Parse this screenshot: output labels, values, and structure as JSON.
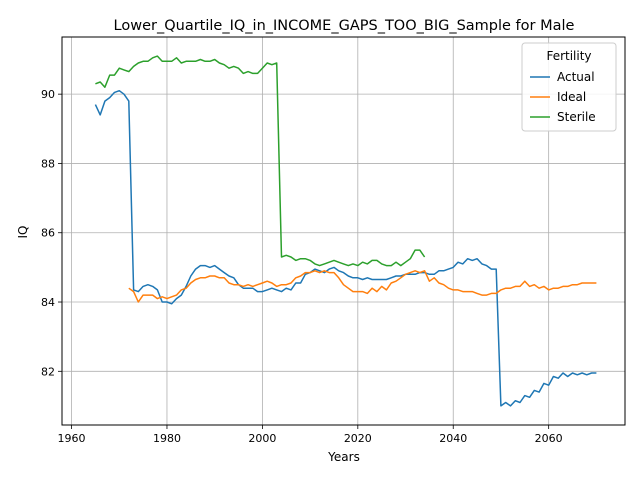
{
  "chart_data": {
    "type": "line",
    "title": "Lower_Quartile_IQ_in_INCOME_GAPS_TOO_BIG_Sample for Male",
    "xlabel": "Years",
    "ylabel": "IQ",
    "xlim": [
      1958,
      2076
    ],
    "ylim": [
      80.45,
      91.65
    ],
    "xticks": [
      1960,
      1980,
      2000,
      2020,
      2040,
      2060
    ],
    "yticks": [
      82,
      84,
      86,
      88,
      90
    ],
    "grid": true,
    "legend": {
      "title": "Fertility",
      "position": "top-right",
      "entries": [
        "Actual",
        "Ideal",
        "Sterile"
      ]
    },
    "series": [
      {
        "name": "Actual",
        "color": "#1f77b4",
        "x": [
          1965,
          1966,
          1967,
          1968,
          1969,
          1970,
          1971,
          1972,
          1973,
          1974,
          1975,
          1976,
          1977,
          1978,
          1979,
          1980,
          1981,
          1982,
          1983,
          1984,
          1985,
          1986,
          1987,
          1988,
          1989,
          1990,
          1991,
          1992,
          1993,
          1994,
          1995,
          1996,
          1997,
          1998,
          1999,
          2000,
          2001,
          2002,
          2003,
          2004,
          2005,
          2006,
          2007,
          2008,
          2009,
          2010,
          2011,
          2012,
          2013,
          2014,
          2015,
          2016,
          2017,
          2018,
          2019,
          2020,
          2021,
          2022,
          2023,
          2024,
          2025,
          2026,
          2027,
          2028,
          2029,
          2030,
          2031,
          2032,
          2033,
          2034,
          2035,
          2036,
          2037,
          2038,
          2039,
          2040,
          2041,
          2042,
          2043,
          2044,
          2045,
          2046,
          2047,
          2048,
          2049,
          2050,
          2051,
          2052,
          2053,
          2054,
          2055,
          2056,
          2057,
          2058,
          2059,
          2060,
          2061,
          2062,
          2063,
          2064,
          2065,
          2066,
          2067,
          2068,
          2069,
          2070
        ],
        "y": [
          89.7,
          89.4,
          89.8,
          89.9,
          90.05,
          90.1,
          90.0,
          89.8,
          84.35,
          84.3,
          84.45,
          84.5,
          84.45,
          84.35,
          84.0,
          84.0,
          83.95,
          84.1,
          84.2,
          84.45,
          84.75,
          84.95,
          85.05,
          85.05,
          85.0,
          85.05,
          84.95,
          84.85,
          84.75,
          84.7,
          84.5,
          84.4,
          84.4,
          84.4,
          84.3,
          84.3,
          84.35,
          84.4,
          84.35,
          84.3,
          84.4,
          84.35,
          84.55,
          84.55,
          84.8,
          84.85,
          84.95,
          84.9,
          84.85,
          84.95,
          85.0,
          84.9,
          84.85,
          84.75,
          84.7,
          84.7,
          84.65,
          84.7,
          84.65,
          84.65,
          84.65,
          84.65,
          84.7,
          84.75,
          84.75,
          84.8,
          84.8,
          84.8,
          84.85,
          84.85,
          84.8,
          84.8,
          84.9,
          84.9,
          84.95,
          85.0,
          85.15,
          85.1,
          85.25,
          85.2,
          85.25,
          85.1,
          85.05,
          84.95,
          84.95,
          81.0,
          81.1,
          81.0,
          81.15,
          81.1,
          81.3,
          81.25,
          81.45,
          81.4,
          81.65,
          81.6,
          81.85,
          81.8,
          81.95,
          81.85,
          81.95,
          81.9,
          81.95,
          81.9,
          81.95,
          81.95
        ]
      },
      {
        "name": "Ideal",
        "color": "#ff7f0e",
        "x": [
          1972,
          1973,
          1974,
          1975,
          1976,
          1977,
          1978,
          1979,
          1980,
          1981,
          1982,
          1983,
          1984,
          1985,
          1986,
          1987,
          1988,
          1989,
          1990,
          1991,
          1992,
          1993,
          1994,
          1995,
          1996,
          1997,
          1998,
          1999,
          2000,
          2001,
          2002,
          2003,
          2004,
          2005,
          2006,
          2007,
          2008,
          2009,
          2010,
          2011,
          2012,
          2013,
          2014,
          2015,
          2016,
          2017,
          2018,
          2019,
          2020,
          2021,
          2022,
          2023,
          2024,
          2025,
          2026,
          2027,
          2028,
          2029,
          2030,
          2031,
          2032,
          2033,
          2034,
          2035,
          2036,
          2037,
          2038,
          2039,
          2040,
          2041,
          2042,
          2043,
          2044,
          2045,
          2046,
          2047,
          2048,
          2049,
          2050,
          2051,
          2052,
          2053,
          2054,
          2055,
          2056,
          2057,
          2058,
          2059,
          2060,
          2061,
          2062,
          2063,
          2064,
          2065,
          2066,
          2067,
          2068,
          2069,
          2070
        ],
        "y": [
          84.4,
          84.3,
          84.0,
          84.2,
          84.2,
          84.2,
          84.1,
          84.15,
          84.1,
          84.15,
          84.2,
          84.35,
          84.4,
          84.55,
          84.65,
          84.7,
          84.7,
          84.75,
          84.75,
          84.7,
          84.7,
          84.55,
          84.5,
          84.5,
          84.45,
          84.5,
          84.45,
          84.5,
          84.55,
          84.6,
          84.55,
          84.45,
          84.5,
          84.5,
          84.55,
          84.7,
          84.75,
          84.85,
          84.85,
          84.9,
          84.85,
          84.9,
          84.85,
          84.85,
          84.7,
          84.5,
          84.4,
          84.3,
          84.3,
          84.3,
          84.25,
          84.4,
          84.3,
          84.45,
          84.35,
          84.55,
          84.6,
          84.7,
          84.8,
          84.85,
          84.9,
          84.85,
          84.9,
          84.6,
          84.7,
          84.55,
          84.5,
          84.4,
          84.35,
          84.35,
          84.3,
          84.3,
          84.3,
          84.25,
          84.2,
          84.2,
          84.25,
          84.25,
          84.35,
          84.4,
          84.4,
          84.45,
          84.45,
          84.6,
          84.45,
          84.5,
          84.4,
          84.45,
          84.35,
          84.4,
          84.4,
          84.45,
          84.45,
          84.5,
          84.5,
          84.55,
          84.55,
          84.55,
          84.55
        ]
      },
      {
        "name": "Sterile",
        "color": "#2ca02c",
        "x": [
          1965,
          1966,
          1967,
          1968,
          1969,
          1970,
          1971,
          1972,
          1973,
          1974,
          1975,
          1976,
          1977,
          1978,
          1979,
          1980,
          1981,
          1982,
          1983,
          1984,
          1985,
          1986,
          1987,
          1988,
          1989,
          1990,
          1991,
          1992,
          1993,
          1994,
          1995,
          1996,
          1997,
          1998,
          1999,
          2000,
          2001,
          2002,
          2003,
          2004,
          2005,
          2006,
          2007,
          2008,
          2009,
          2010,
          2011,
          2012,
          2013,
          2014,
          2015,
          2016,
          2017,
          2018,
          2019,
          2020,
          2021,
          2022,
          2023,
          2024,
          2025,
          2026,
          2027,
          2028,
          2029,
          2030,
          2031,
          2032,
          2033,
          2034
        ],
        "y": [
          90.3,
          90.35,
          90.2,
          90.55,
          90.55,
          90.75,
          90.7,
          90.65,
          90.8,
          90.9,
          90.95,
          90.95,
          91.05,
          91.1,
          90.95,
          90.95,
          90.95,
          91.05,
          90.9,
          90.95,
          90.95,
          90.95,
          91.0,
          90.95,
          90.95,
          91.0,
          90.9,
          90.85,
          90.75,
          90.8,
          90.75,
          90.6,
          90.65,
          90.6,
          90.6,
          90.75,
          90.9,
          90.85,
          90.9,
          85.3,
          85.35,
          85.3,
          85.2,
          85.25,
          85.25,
          85.2,
          85.1,
          85.05,
          85.1,
          85.15,
          85.2,
          85.15,
          85.1,
          85.05,
          85.1,
          85.05,
          85.15,
          85.1,
          85.2,
          85.2,
          85.1,
          85.05,
          85.05,
          85.15,
          85.05,
          85.15,
          85.25,
          85.5,
          85.5,
          85.3
        ]
      }
    ]
  }
}
